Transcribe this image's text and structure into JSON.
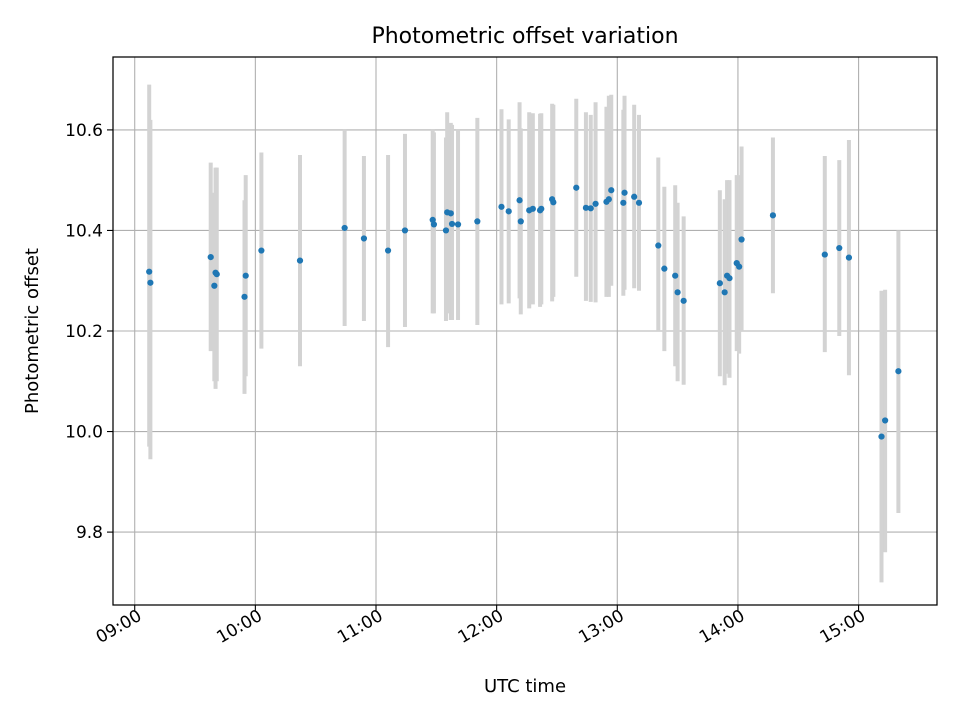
{
  "chart_data": {
    "type": "scatter",
    "title": "Photometric offset variation",
    "xlabel": "UTC time",
    "ylabel": "Photometric offset",
    "x_unit": "hours UTC",
    "xlim": [
      8.82,
      15.65
    ],
    "ylim": [
      9.655,
      10.745
    ],
    "x_ticks": [
      {
        "value": 9,
        "label": "09:00"
      },
      {
        "value": 10,
        "label": "10:00"
      },
      {
        "value": 11,
        "label": "11:00"
      },
      {
        "value": 12,
        "label": "12:00"
      },
      {
        "value": 13,
        "label": "13:00"
      },
      {
        "value": 14,
        "label": "14:00"
      },
      {
        "value": 15,
        "label": "15:00"
      }
    ],
    "y_ticks": [
      {
        "value": 9.8,
        "label": "9.8"
      },
      {
        "value": 10.0,
        "label": "10.0"
      },
      {
        "value": 10.2,
        "label": "10.2"
      },
      {
        "value": 10.4,
        "label": "10.4"
      },
      {
        "value": 10.6,
        "label": "10.6"
      }
    ],
    "grid": true,
    "colors": {
      "marker": "#1f77b4",
      "errorbar": "#d3d3d3",
      "grid": "#b0b0b0"
    },
    "series": [
      {
        "name": "Photometric offset",
        "points": [
          {
            "t": 9.12,
            "y": 10.318,
            "lo": 9.97,
            "hi": 10.69
          },
          {
            "t": 9.13,
            "y": 10.296,
            "lo": 9.945,
            "hi": 10.62
          },
          {
            "t": 9.63,
            "y": 10.347,
            "lo": 10.16,
            "hi": 10.535
          },
          {
            "t": 9.66,
            "y": 10.29,
            "lo": 10.1,
            "hi": 10.475
          },
          {
            "t": 9.67,
            "y": 10.316,
            "lo": 10.085,
            "hi": 10.525
          },
          {
            "t": 9.68,
            "y": 10.313,
            "lo": 10.1,
            "hi": 10.525
          },
          {
            "t": 9.91,
            "y": 10.268,
            "lo": 10.075,
            "hi": 10.46
          },
          {
            "t": 9.92,
            "y": 10.31,
            "lo": 10.11,
            "hi": 10.51
          },
          {
            "t": 10.05,
            "y": 10.36,
            "lo": 10.165,
            "hi": 10.555
          },
          {
            "t": 10.37,
            "y": 10.34,
            "lo": 10.13,
            "hi": 10.55
          },
          {
            "t": 10.74,
            "y": 10.405,
            "lo": 10.21,
            "hi": 10.6
          },
          {
            "t": 10.9,
            "y": 10.384,
            "lo": 10.22,
            "hi": 10.548
          },
          {
            "t": 11.1,
            "y": 10.36,
            "lo": 10.168,
            "hi": 10.55
          },
          {
            "t": 11.24,
            "y": 10.4,
            "lo": 10.208,
            "hi": 10.592
          },
          {
            "t": 11.47,
            "y": 10.421,
            "lo": 10.235,
            "hi": 10.6
          },
          {
            "t": 11.48,
            "y": 10.412,
            "lo": 10.235,
            "hi": 10.595
          },
          {
            "t": 11.58,
            "y": 10.4,
            "lo": 10.22,
            "hi": 10.585
          },
          {
            "t": 11.59,
            "y": 10.436,
            "lo": 10.235,
            "hi": 10.635
          },
          {
            "t": 11.62,
            "y": 10.434,
            "lo": 10.222,
            "hi": 10.614
          },
          {
            "t": 11.63,
            "y": 10.413,
            "lo": 10.222,
            "hi": 10.61
          },
          {
            "t": 11.68,
            "y": 10.412,
            "lo": 10.222,
            "hi": 10.6
          },
          {
            "t": 11.84,
            "y": 10.418,
            "lo": 10.212,
            "hi": 10.624
          },
          {
            "t": 12.04,
            "y": 10.447,
            "lo": 10.253,
            "hi": 10.641
          },
          {
            "t": 12.1,
            "y": 10.438,
            "lo": 10.255,
            "hi": 10.621
          },
          {
            "t": 12.19,
            "y": 10.46,
            "lo": 10.265,
            "hi": 10.655
          },
          {
            "t": 12.2,
            "y": 10.418,
            "lo": 10.233,
            "hi": 10.603
          },
          {
            "t": 12.27,
            "y": 10.44,
            "lo": 10.245,
            "hi": 10.635
          },
          {
            "t": 12.3,
            "y": 10.443,
            "lo": 10.253,
            "hi": 10.633
          },
          {
            "t": 12.36,
            "y": 10.44,
            "lo": 10.248,
            "hi": 10.632
          },
          {
            "t": 12.37,
            "y": 10.443,
            "lo": 10.253,
            "hi": 10.633
          },
          {
            "t": 12.46,
            "y": 10.462,
            "lo": 10.259,
            "hi": 10.652
          },
          {
            "t": 12.47,
            "y": 10.456,
            "lo": 10.268,
            "hi": 10.65
          },
          {
            "t": 12.66,
            "y": 10.485,
            "lo": 10.308,
            "hi": 10.662
          },
          {
            "t": 12.74,
            "y": 10.445,
            "lo": 10.26,
            "hi": 10.635
          },
          {
            "t": 12.78,
            "y": 10.444,
            "lo": 10.258,
            "hi": 10.63
          },
          {
            "t": 12.82,
            "y": 10.453,
            "lo": 10.257,
            "hi": 10.655
          },
          {
            "t": 12.91,
            "y": 10.457,
            "lo": 10.268,
            "hi": 10.646
          },
          {
            "t": 12.93,
            "y": 10.462,
            "lo": 10.268,
            "hi": 10.668
          },
          {
            "t": 12.95,
            "y": 10.48,
            "lo": 10.29,
            "hi": 10.67
          },
          {
            "t": 13.05,
            "y": 10.455,
            "lo": 10.27,
            "hi": 10.64
          },
          {
            "t": 13.06,
            "y": 10.475,
            "lo": 10.282,
            "hi": 10.668
          },
          {
            "t": 13.14,
            "y": 10.467,
            "lo": 10.285,
            "hi": 10.65
          },
          {
            "t": 13.18,
            "y": 10.455,
            "lo": 10.28,
            "hi": 10.63
          },
          {
            "t": 13.34,
            "y": 10.37,
            "lo": 10.2,
            "hi": 10.545
          },
          {
            "t": 13.39,
            "y": 10.324,
            "lo": 10.16,
            "hi": 10.487
          },
          {
            "t": 13.48,
            "y": 10.31,
            "lo": 10.13,
            "hi": 10.49
          },
          {
            "t": 13.5,
            "y": 10.277,
            "lo": 10.1,
            "hi": 10.455
          },
          {
            "t": 13.55,
            "y": 10.26,
            "lo": 10.093,
            "hi": 10.428
          },
          {
            "t": 13.85,
            "y": 10.295,
            "lo": 10.11,
            "hi": 10.48
          },
          {
            "t": 13.89,
            "y": 10.277,
            "lo": 10.092,
            "hi": 10.462
          },
          {
            "t": 13.91,
            "y": 10.31,
            "lo": 10.115,
            "hi": 10.5
          },
          {
            "t": 13.93,
            "y": 10.305,
            "lo": 10.107,
            "hi": 10.5
          },
          {
            "t": 13.99,
            "y": 10.335,
            "lo": 10.16,
            "hi": 10.51
          },
          {
            "t": 14.01,
            "y": 10.328,
            "lo": 10.155,
            "hi": 10.51
          },
          {
            "t": 14.03,
            "y": 10.382,
            "lo": 10.2,
            "hi": 10.567
          },
          {
            "t": 14.29,
            "y": 10.43,
            "lo": 10.275,
            "hi": 10.585
          },
          {
            "t": 14.72,
            "y": 10.352,
            "lo": 10.158,
            "hi": 10.548
          },
          {
            "t": 14.84,
            "y": 10.365,
            "lo": 10.19,
            "hi": 10.54
          },
          {
            "t": 14.92,
            "y": 10.346,
            "lo": 10.112,
            "hi": 10.58
          },
          {
            "t": 15.19,
            "y": 9.99,
            "lo": 9.7,
            "hi": 10.28
          },
          {
            "t": 15.22,
            "y": 10.022,
            "lo": 9.76,
            "hi": 10.282
          },
          {
            "t": 15.33,
            "y": 10.12,
            "lo": 9.838,
            "hi": 10.4
          }
        ]
      }
    ]
  }
}
